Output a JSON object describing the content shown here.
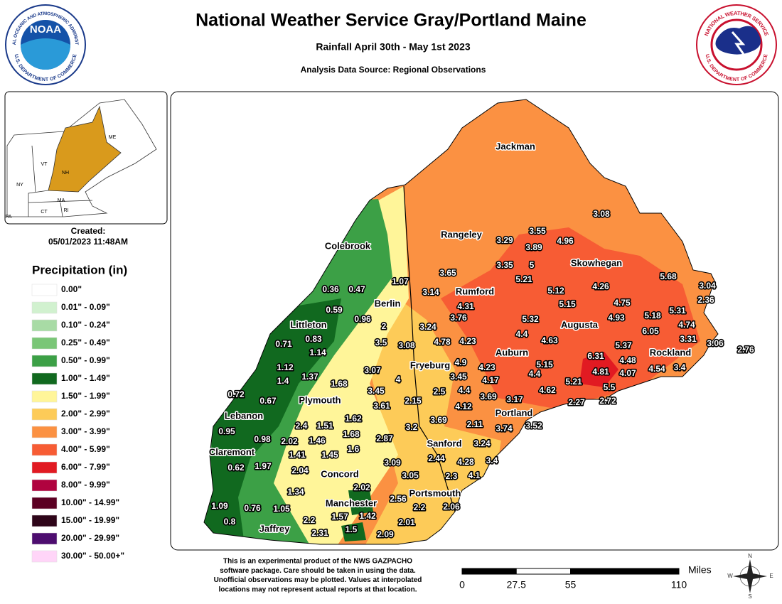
{
  "header": {
    "title": "National Weather Service Gray/Portland Maine",
    "subtitle": "Rainfall April 30th - May 1st 2023",
    "source": "Analysis Data Source: Regional Observations"
  },
  "logos": {
    "noaa_name": "NOAA",
    "noaa_ring_top": "NATIONAL OCEANIC AND ATMOSPHERIC ADMINISTRATION",
    "noaa_ring_bottom": "U.S. DEPARTMENT OF COMMERCE",
    "nws_ring_top": "NATIONAL WEATHER SERVICE",
    "nws_ring_bottom": "U.S. DEPARTMENT OF COMMERCE"
  },
  "inset": {
    "labels": [
      "ME",
      "VT",
      "NH",
      "NY",
      "MA",
      "CT",
      "RI",
      "PA"
    ],
    "highlight_color": "#d99a1c"
  },
  "created": {
    "label": "Created:",
    "timestamp": "05/01/2023 11:48AM"
  },
  "legend": {
    "title": "Precipitation (in)",
    "items": [
      {
        "label": "0.00\"",
        "color": "#ffffff"
      },
      {
        "label": "0.01\" - 0.09\"",
        "color": "#d1f1cf"
      },
      {
        "label": "0.10\" - 0.24\"",
        "color": "#a8dba5"
      },
      {
        "label": "0.25\" - 0.49\"",
        "color": "#7ac677"
      },
      {
        "label": "0.50\" - 0.99\"",
        "color": "#3ca046"
      },
      {
        "label": "1.00\" - 1.49\"",
        "color": "#11691f"
      },
      {
        "label": "1.50\" - 1.99\"",
        "color": "#fff599"
      },
      {
        "label": "2.00\" - 2.99\"",
        "color": "#fdcb58"
      },
      {
        "label": "3.00\" - 3.99\"",
        "color": "#fb9142"
      },
      {
        "label": "4.00\" - 5.99\"",
        "color": "#f75c34"
      },
      {
        "label": "6.00\" - 7.99\"",
        "color": "#e11a22"
      },
      {
        "label": "8.00\" - 9.99\"",
        "color": "#b0033f"
      },
      {
        "label": "10.00\" - 14.99\"",
        "color": "#5c0023"
      },
      {
        "label": "15.00\" - 19.99\"",
        "color": "#2e0519"
      },
      {
        "label": "20.00\" - 29.99\"",
        "color": "#4d0d6f"
      },
      {
        "label": "30.00\" - 50.00+\"",
        "color": "#ffd5f8"
      }
    ]
  },
  "map": {
    "cities": [
      "Jackman",
      "Rangeley",
      "Colebrook",
      "Skowhegan",
      "Rumford",
      "Berlin",
      "Augusta",
      "Littleton",
      "Auburn",
      "Rockland",
      "Fryeburg",
      "Plymouth",
      "Portland",
      "Lebanon",
      "Sanford",
      "Claremont",
      "Concord",
      "Portsmouth",
      "Manchester",
      "Jaffrey"
    ],
    "observations": [
      3.08,
      3.55,
      3.29,
      3.89,
      4.96,
      3.35,
      5,
      3.65,
      5.21,
      1.07,
      0.36,
      0.47,
      3.14,
      5.12,
      4.26,
      5.68,
      3.04,
      2.36,
      5.15,
      4.31,
      0.59,
      0.96,
      3.76,
      5.32,
      4.75,
      5.18,
      5.31,
      2,
      3.24,
      4.93,
      4.74,
      6.05,
      0.83,
      4.4,
      3.31,
      0.71,
      3.5,
      3.08,
      4.78,
      4.23,
      4.63,
      5.37,
      3.06,
      2.76,
      1.14,
      6.31,
      4.48,
      4.9,
      4.23,
      5.15,
      4.81,
      4.07,
      4.54,
      3.4,
      3.07,
      1.12,
      1.37,
      4,
      3.45,
      4.17,
      4.4,
      5.21,
      5.5,
      4.62,
      1.4,
      1.68,
      3.45,
      2.5,
      4.4,
      3.69,
      3.17,
      0.72,
      0.67,
      3.61,
      2.15,
      4.12,
      2.27,
      2.72,
      1.62,
      3.69,
      2.11,
      3.74,
      3.52,
      2.4,
      1.51,
      3.2,
      0.95,
      1.68,
      2.87,
      3.24,
      0.98,
      2.02,
      1.46,
      1.6,
      1.41,
      1.45,
      2.44,
      4.28,
      3.4,
      0.62,
      1.97,
      3.09,
      2.04,
      3.05,
      2.3,
      4.1,
      2.02,
      1.34,
      2.56,
      2.06,
      2.2,
      1.09,
      0.76,
      1.05,
      1.57,
      1.42,
      2.2,
      0.8,
      2.01,
      2.31,
      1.5,
      2.09
    ]
  },
  "disclaimer": [
    "This is an experimental product of the NWS GAZPACHO",
    "software package. Care should be taken in using the data.",
    "Unofficial observations may be plotted. Values at interpolated",
    "locations may not represent actual reports at that location."
  ],
  "scale": {
    "unit": "Miles",
    "ticks": [
      0,
      27.5,
      55,
      110
    ]
  },
  "compass": [
    "N",
    "E",
    "S",
    "W"
  ]
}
